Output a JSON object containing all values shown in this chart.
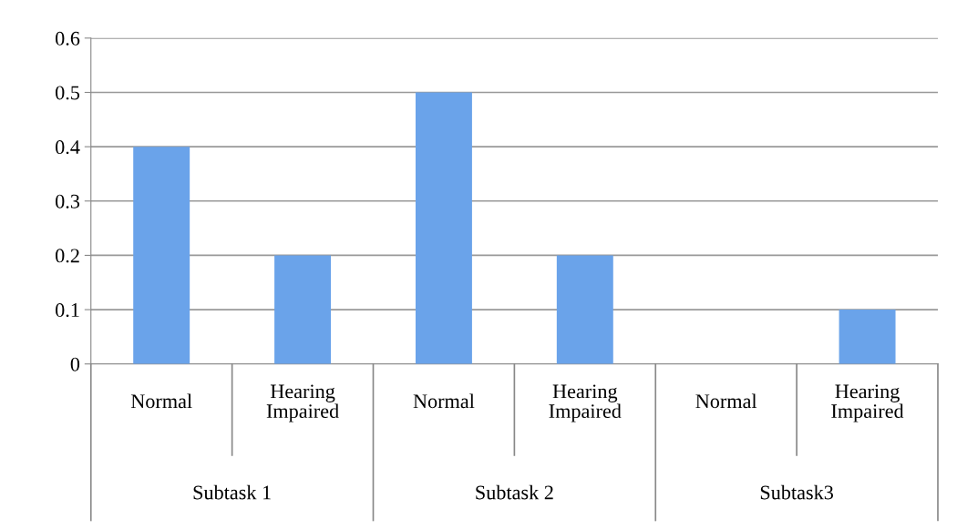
{
  "chart_data": {
    "type": "bar",
    "categories": [
      "Normal",
      "Hearing Impaired",
      "Normal",
      "Hearing Impaired",
      "Normal",
      "Hearing Impaired"
    ],
    "values": [
      0.4,
      0.2,
      0.5,
      0.2,
      0,
      0.1
    ],
    "color": "#6aa3ea",
    "annotations": [
      "Subtask 1",
      "Subtask 2",
      "Subtask3"
    ],
    "ylim": [
      0,
      0.6
    ],
    "yticks": [
      0,
      0.1,
      0.2,
      0.3,
      0.4,
      0.5,
      0.6
    ],
    "grid": "y",
    "legend": false
  }
}
